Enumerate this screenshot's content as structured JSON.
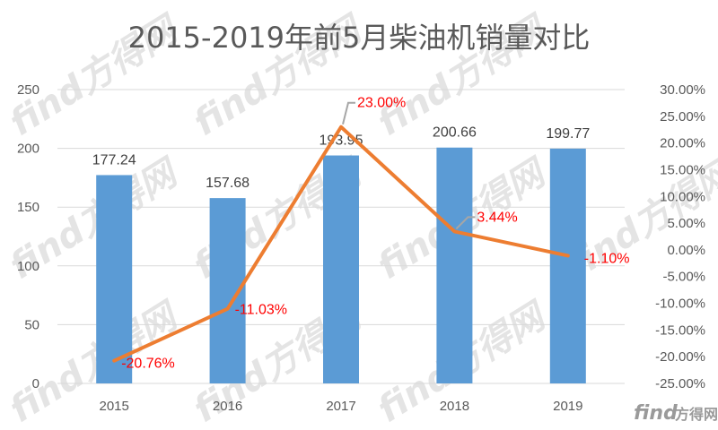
{
  "chart_data": {
    "type": "bar",
    "title": "2015-2019年前5月柴油机销量对比",
    "categories": [
      "2015",
      "2016",
      "2017",
      "2018",
      "2019"
    ],
    "series": [
      {
        "type": "bar",
        "axis": "left",
        "values": [
          177.24,
          157.68,
          193.95,
          200.66,
          199.77
        ],
        "labels": [
          "177.24",
          "157.68",
          "193.95",
          "200.66",
          "199.77"
        ]
      },
      {
        "type": "line",
        "axis": "right",
        "values": [
          -20.76,
          -11.03,
          23.0,
          3.44,
          -1.1
        ],
        "labels": [
          "-20.76%",
          "-11.03%",
          "23.00%",
          "3.44%",
          "-1.10%"
        ]
      }
    ],
    "y_left": {
      "min": 0,
      "max": 250,
      "step": 50,
      "ticks": [
        "0",
        "50",
        "100",
        "150",
        "200",
        "250"
      ]
    },
    "y_right": {
      "min": -25,
      "max": 30,
      "step": 5,
      "ticks": [
        "-25.00%",
        "-20.00%",
        "-15.00%",
        "-10.00%",
        "-5.00%",
        "0.00%",
        "5.00%",
        "10.00%",
        "15.00%",
        "20.00%",
        "25.00%",
        "30.00%"
      ]
    },
    "grid": true,
    "legend": "none",
    "colors": {
      "bar": "#5b9bd5",
      "line": "#ed7d31",
      "pct_label": "#ff0000",
      "grid": "#d9d9d9",
      "leader": "#a6a6a6"
    }
  },
  "watermark": {
    "brand": "find方得网",
    "latin": "find",
    "cjk": "方得网"
  }
}
